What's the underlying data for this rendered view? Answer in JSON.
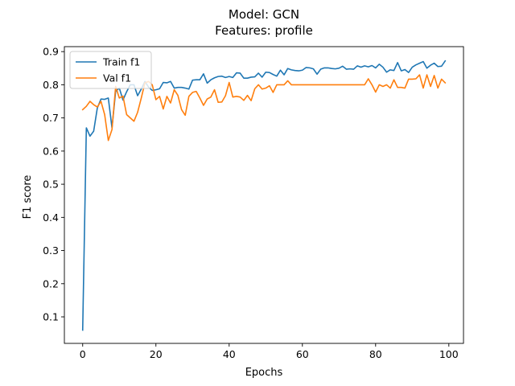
{
  "chart_data": {
    "type": "line",
    "title": "Model: GCN",
    "subtitle": "Features: profile",
    "xlabel": "Epochs",
    "ylabel": "F1 score",
    "xlim": [
      -5,
      104
    ],
    "ylim": [
      0.02,
      0.915
    ],
    "xticks": [
      0,
      20,
      40,
      60,
      80,
      100
    ],
    "yticks": [
      0.1,
      0.2,
      0.3,
      0.4,
      0.5,
      0.6,
      0.7,
      0.8,
      0.9
    ],
    "legend_position": "top-left",
    "grid": false,
    "x": [
      0,
      1,
      2,
      3,
      4,
      5,
      6,
      7,
      8,
      9,
      10,
      11,
      12,
      13,
      14,
      15,
      16,
      17,
      18,
      19,
      20,
      21,
      22,
      23,
      24,
      25,
      26,
      27,
      28,
      29,
      30,
      31,
      32,
      33,
      34,
      35,
      36,
      37,
      38,
      39,
      40,
      41,
      42,
      43,
      44,
      45,
      46,
      47,
      48,
      49,
      50,
      51,
      52,
      53,
      54,
      55,
      56,
      57,
      58,
      59,
      60,
      61,
      62,
      63,
      64,
      65,
      66,
      67,
      68,
      69,
      70,
      71,
      72,
      73,
      74,
      75,
      76,
      77,
      78,
      79,
      80,
      81,
      82,
      83,
      84,
      85,
      86,
      87,
      88,
      89,
      90,
      91,
      92,
      93,
      94,
      95,
      96,
      97,
      98,
      99
    ],
    "series": [
      {
        "name": "Train f1",
        "color": "#1f77b4",
        "values": [
          0.06,
          0.67,
          0.645,
          0.66,
          0.73,
          0.757,
          0.756,
          0.76,
          0.67,
          0.78,
          0.79,
          0.754,
          0.779,
          0.8,
          0.8,
          0.767,
          0.787,
          0.81,
          0.793,
          0.783,
          0.785,
          0.788,
          0.807,
          0.806,
          0.81,
          0.79,
          0.792,
          0.792,
          0.79,
          0.787,
          0.814,
          0.815,
          0.815,
          0.833,
          0.805,
          0.815,
          0.821,
          0.825,
          0.826,
          0.822,
          0.825,
          0.822,
          0.836,
          0.835,
          0.82,
          0.82,
          0.823,
          0.824,
          0.835,
          0.823,
          0.838,
          0.837,
          0.831,
          0.826,
          0.844,
          0.83,
          0.849,
          0.845,
          0.843,
          0.842,
          0.844,
          0.852,
          0.851,
          0.848,
          0.832,
          0.847,
          0.851,
          0.851,
          0.849,
          0.848,
          0.85,
          0.856,
          0.847,
          0.848,
          0.847,
          0.857,
          0.853,
          0.857,
          0.854,
          0.858,
          0.851,
          0.862,
          0.853,
          0.838,
          0.845,
          0.843,
          0.867,
          0.842,
          0.846,
          0.837,
          0.853,
          0.86,
          0.865,
          0.87,
          0.85,
          0.859,
          0.865,
          0.855,
          0.856,
          0.872
        ]
      },
      {
        "name": "Val f1",
        "color": "#ff7f0e",
        "values": [
          0.725,
          0.735,
          0.75,
          0.74,
          0.733,
          0.75,
          0.71,
          0.632,
          0.665,
          0.795,
          0.76,
          0.766,
          0.71,
          0.7,
          0.69,
          0.717,
          0.76,
          0.806,
          0.81,
          0.8,
          0.755,
          0.765,
          0.727,
          0.765,
          0.745,
          0.785,
          0.768,
          0.725,
          0.708,
          0.765,
          0.777,
          0.78,
          0.76,
          0.738,
          0.757,
          0.763,
          0.785,
          0.747,
          0.748,
          0.767,
          0.807,
          0.763,
          0.765,
          0.763,
          0.753,
          0.768,
          0.752,
          0.788,
          0.8,
          0.787,
          0.79,
          0.797,
          0.777,
          0.8,
          0.8,
          0.8,
          0.812,
          0.8,
          0.8,
          0.8,
          0.8,
          0.8,
          0.8,
          0.8,
          0.8,
          0.8,
          0.8,
          0.8,
          0.8,
          0.8,
          0.8,
          0.8,
          0.8,
          0.8,
          0.8,
          0.8,
          0.8,
          0.8,
          0.818,
          0.8,
          0.778,
          0.8,
          0.795,
          0.8,
          0.79,
          0.815,
          0.792,
          0.792,
          0.79,
          0.817,
          0.817,
          0.818,
          0.83,
          0.79,
          0.83,
          0.795,
          0.828,
          0.79,
          0.817,
          0.806
        ]
      }
    ]
  }
}
